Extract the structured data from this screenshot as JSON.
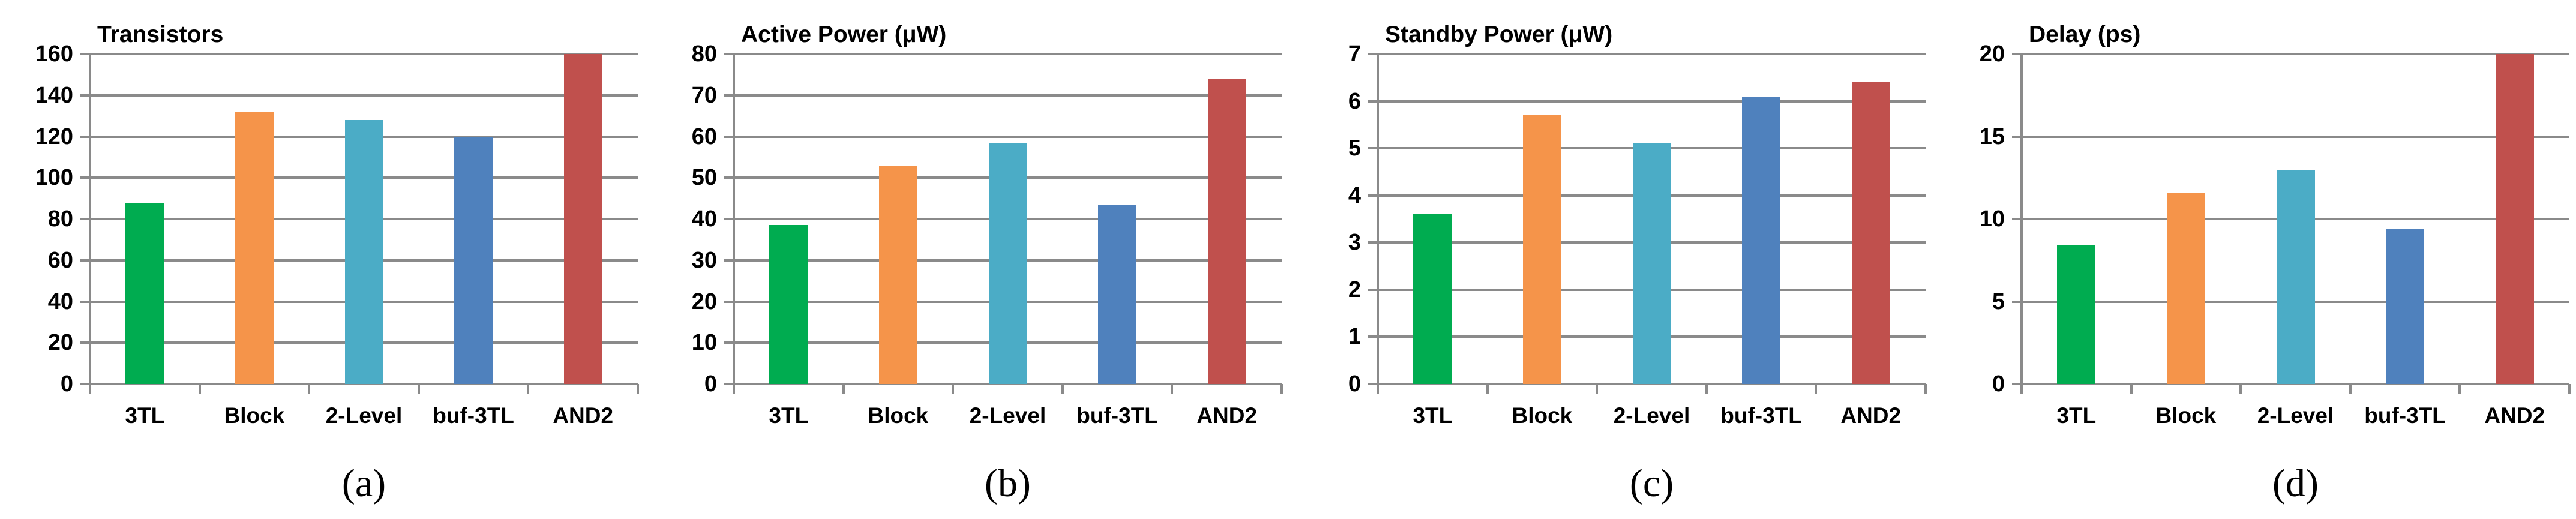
{
  "figure": {
    "background": "#ffffff",
    "grid_color": "#8A8A8A",
    "text_color": "#000000",
    "bar_colors": [
      "#00AC50",
      "#F5944A",
      "#4BACC6",
      "#4F81BD",
      "#C0504D"
    ]
  },
  "chart_data": [
    {
      "type": "bar",
      "title": "Transistors",
      "caption": "(a)",
      "categories": [
        "3TL",
        "Block",
        "2-Level",
        "buf-3TL",
        "AND2"
      ],
      "values": [
        88,
        132,
        128,
        120,
        160
      ],
      "xlabel": "",
      "ylabel": "Transistors",
      "ylim": [
        0,
        160
      ],
      "ystep": 20,
      "grid": "horizontal",
      "legend": "none"
    },
    {
      "type": "bar",
      "title": "Active Power (μW)",
      "caption": "(b)",
      "categories": [
        "3TL",
        "Block",
        "2-Level",
        "buf-3TL",
        "AND2"
      ],
      "values": [
        38.5,
        53,
        58.5,
        43.5,
        74
      ],
      "xlabel": "",
      "ylabel": "Active Power (μW)",
      "ylim": [
        0,
        80
      ],
      "ystep": 10,
      "grid": "horizontal",
      "legend": "none"
    },
    {
      "type": "bar",
      "title": "Standby Power (μW)",
      "caption": "(c)",
      "categories": [
        "3TL",
        "Block",
        "2-Level",
        "buf-3TL",
        "AND2"
      ],
      "values": [
        3.6,
        5.7,
        5.1,
        6.1,
        6.4
      ],
      "xlabel": "",
      "ylabel": "Standby Power (μW)",
      "ylim": [
        0,
        7
      ],
      "ystep": 1,
      "grid": "horizontal",
      "legend": "none"
    },
    {
      "type": "bar",
      "title": "Delay (ps)",
      "caption": "(d)",
      "categories": [
        "3TL",
        "Block",
        "2-Level",
        "buf-3TL",
        "AND2"
      ],
      "values": [
        8.4,
        11.6,
        13,
        9.4,
        20
      ],
      "xlabel": "",
      "ylabel": "Delay (ps)",
      "ylim": [
        0,
        20
      ],
      "ystep": 5,
      "grid": "horizontal",
      "legend": "none"
    }
  ]
}
